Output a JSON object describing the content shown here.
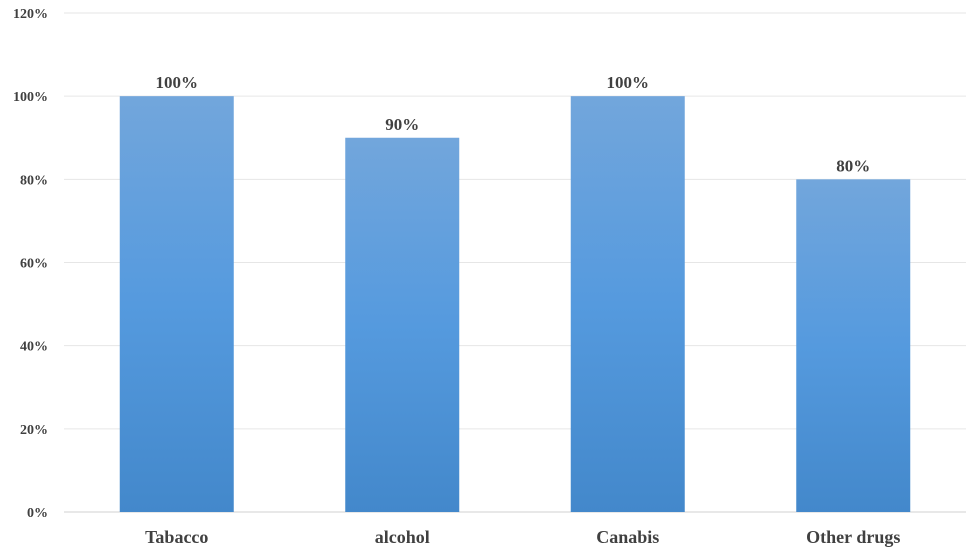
{
  "chart_data": {
    "type": "bar",
    "title": "",
    "xlabel": "",
    "ylabel": "",
    "categories": [
      "Tabacco",
      "alcohol",
      "Canabis",
      "Other drugs"
    ],
    "values": [
      100,
      90,
      100,
      80
    ],
    "data_labels": [
      "100%",
      "90%",
      "100%",
      "80%"
    ],
    "ylim": [
      0,
      120
    ],
    "yticks": [
      0,
      20,
      40,
      60,
      80,
      100,
      120
    ],
    "ytick_labels": [
      "0%",
      "20%",
      "40%",
      "60%",
      "80%",
      "100%",
      "120%"
    ],
    "grid": true,
    "legend": "none",
    "colors": {
      "bar_top": "#72a6dc",
      "bar_bottom": "#4388cb",
      "gradient_mid": "#559ade"
    }
  }
}
